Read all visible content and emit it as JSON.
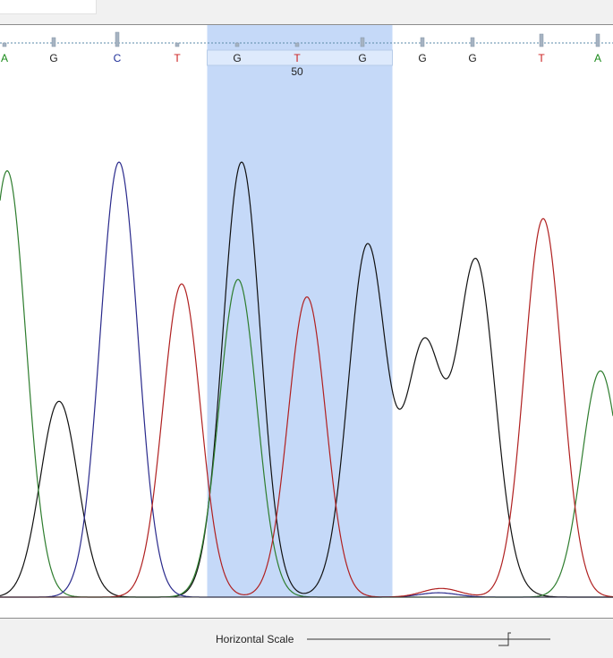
{
  "chart_data": {
    "type": "line",
    "title": "",
    "xlabel": "",
    "ylabel": "",
    "position_label": "50",
    "bases": [
      {
        "letter": "A",
        "color": "#1a8a1a"
      },
      {
        "letter": "G",
        "color": "#222222"
      },
      {
        "letter": "C",
        "color": "#1f2f99"
      },
      {
        "letter": "T",
        "color": "#cc2020"
      },
      {
        "letter": "G",
        "color": "#222222"
      },
      {
        "letter": "T",
        "color": "#cc2020"
      },
      {
        "letter": "G",
        "color": "#222222"
      },
      {
        "letter": "G",
        "color": "#222222"
      },
      {
        "letter": "G",
        "color": "#222222"
      },
      {
        "letter": "T",
        "color": "#cc2020"
      },
      {
        "letter": "A",
        "color": "#1a8a1a"
      }
    ],
    "series": [
      {
        "base": "G",
        "color": "#111111",
        "peaks": [
          [
            66,
            0.45
          ],
          [
            270,
            1.0
          ],
          [
            388,
            0.03
          ],
          [
            411,
            0.79
          ],
          [
            474,
            0.57
          ],
          [
            532,
            0.76
          ],
          [
            565,
            0.02
          ]
        ]
      },
      {
        "base": "A",
        "color": "#2e7d2e",
        "peaks": [
          [
            8,
            0.98
          ],
          [
            266,
            0.73
          ],
          [
            671,
            0.52
          ]
        ]
      },
      {
        "base": "C",
        "color": "#2a2a8c",
        "peaks": [
          [
            133,
            1.0
          ],
          [
            490,
            0.01
          ]
        ]
      },
      {
        "base": "T",
        "color": "#b02020",
        "peaks": [
          [
            203,
            0.72
          ],
          [
            343,
            0.69
          ],
          [
            493,
            0.02
          ],
          [
            607,
            0.87
          ]
        ]
      }
    ],
    "highlight_region": {
      "start_base": 4,
      "end_base": 6
    }
  },
  "controls": {
    "horizontal_scale_label": "Horizontal Scale"
  }
}
